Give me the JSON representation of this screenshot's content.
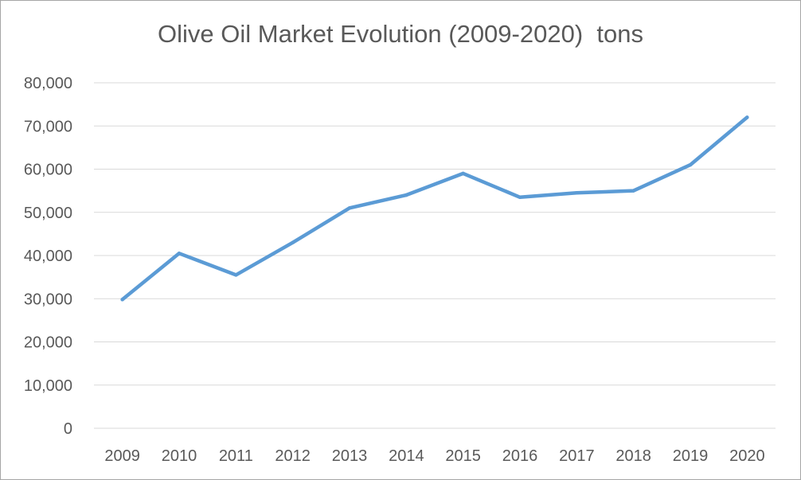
{
  "chart_data": {
    "type": "line",
    "title": "Olive Oil Market Evolution (2009-2020)  tons",
    "xlabel": "",
    "ylabel": "",
    "categories": [
      "2009",
      "2010",
      "2011",
      "2012",
      "2013",
      "2014",
      "2015",
      "2016",
      "2017",
      "2018",
      "2019",
      "2020"
    ],
    "series": [
      {
        "values": [
          29800,
          40500,
          35500,
          43000,
          51000,
          54000,
          59000,
          53500,
          54500,
          55000,
          61000,
          72000
        ]
      }
    ],
    "ylim": [
      0,
      80000
    ],
    "yticks": [
      0,
      10000,
      20000,
      30000,
      40000,
      50000,
      60000,
      70000,
      80000
    ],
    "ytick_labels": [
      "0",
      "10,000",
      "20,000",
      "30,000",
      "40,000",
      "50,000",
      "60,000",
      "70,000",
      "80,000"
    ],
    "grid": true,
    "legend": "none",
    "colors": {
      "line": "#5b9bd5",
      "grid": "#d9d9d9",
      "text": "#595959"
    }
  }
}
